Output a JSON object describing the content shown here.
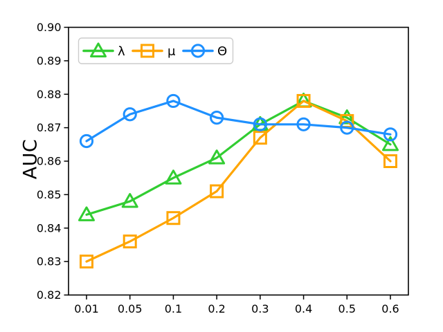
{
  "chart_data": {
    "type": "line",
    "title": "",
    "xlabel": "",
    "ylabel": "AUC",
    "x_tick_labels": [
      "0.01",
      "0.05",
      "0.1",
      "0.2",
      "0.3",
      "0.4",
      "0.5",
      "0.6"
    ],
    "y_tick_labels": [
      "0.82",
      "0.83",
      "0.84",
      "0.85",
      "0.86",
      "0.87",
      "0.88",
      "0.89",
      "0.90"
    ],
    "ylim": [
      0.82,
      0.9
    ],
    "grid": false,
    "legend_position": "upper left, horizontal",
    "series": [
      {
        "name": "λ",
        "marker": "triangle",
        "color": "#32CD32",
        "values": [
          0.844,
          0.848,
          0.855,
          0.861,
          0.871,
          0.878,
          0.873,
          0.865
        ]
      },
      {
        "name": "μ",
        "marker": "square",
        "color": "#FFA500",
        "values": [
          0.83,
          0.836,
          0.843,
          0.851,
          0.867,
          0.878,
          0.872,
          0.86
        ]
      },
      {
        "name": "Θ",
        "marker": "circle",
        "color": "#1E90FF",
        "values": [
          0.866,
          0.874,
          0.878,
          0.873,
          0.871,
          0.871,
          0.87,
          0.868
        ]
      }
    ],
    "axis_color": "#000000",
    "legend_border_color": "#cccccc",
    "legend_background": "#ffffff"
  }
}
